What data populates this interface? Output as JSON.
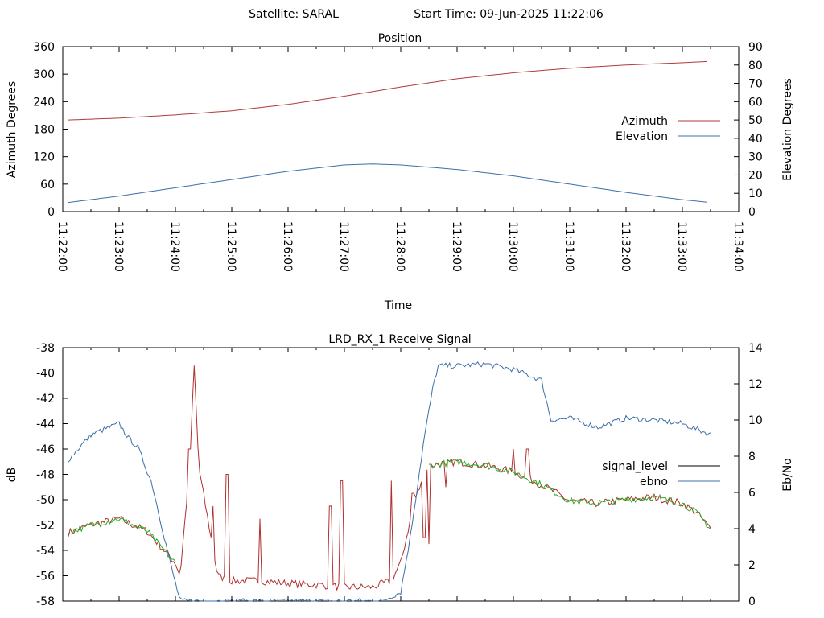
{
  "header": {
    "satellite_label": "Satellite: SARAL",
    "start_time_label": "Start Time: 09-Jun-2025 11:22:06"
  },
  "colors": {
    "azimuth": "#b03a3a",
    "elevation": "#3b6fa8",
    "signal_level": "#000000",
    "signal_level_drawn": "#b03030",
    "ebno": "#3b6fa8",
    "ebno_drawn": "#20b020"
  },
  "chart_data": [
    {
      "type": "line",
      "title": "Position",
      "xlabel": "Time",
      "ylabel": "Azimuth Degrees",
      "y2label": "Elevation Degrees",
      "xlim": [
        "11:22:00",
        "11:34:00"
      ],
      "x_ticks": [
        "11:22:00",
        "11:23:00",
        "11:24:00",
        "11:25:00",
        "11:26:00",
        "11:27:00",
        "11:28:00",
        "11:29:00",
        "11:30:00",
        "11:31:00",
        "11:32:00",
        "11:33:00",
        "11:34:00"
      ],
      "ylim": [
        0,
        360
      ],
      "y_ticks": [
        "0",
        "60",
        "120",
        "180",
        "240",
        "300",
        "360"
      ],
      "y2lim": [
        0,
        90
      ],
      "y2_ticks": [
        "0",
        "10",
        "20",
        "30",
        "40",
        "50",
        "60",
        "70",
        "80",
        "90"
      ],
      "legend_position": "right",
      "grid": false,
      "series": [
        {
          "name": "Azimuth",
          "axis": "left",
          "x": [
            "11:22:06",
            "11:23:00",
            "11:24:00",
            "11:25:00",
            "11:26:00",
            "11:27:00",
            "11:28:00",
            "11:29:00",
            "11:30:00",
            "11:31:00",
            "11:32:00",
            "11:33:00",
            "11:33:30"
          ],
          "values": [
            200,
            204,
            211,
            220,
            234,
            252,
            272,
            290,
            303,
            313,
            320,
            325,
            328
          ]
        },
        {
          "name": "Elevation",
          "axis": "right",
          "x": [
            "11:22:06",
            "11:23:00",
            "11:24:00",
            "11:25:00",
            "11:26:00",
            "11:27:00",
            "11:27:30",
            "11:28:00",
            "11:29:00",
            "11:30:00",
            "11:31:00",
            "11:32:00",
            "11:33:00",
            "11:33:30"
          ],
          "values": [
            5,
            8.5,
            13,
            17.5,
            22,
            25.5,
            26,
            25.5,
            23,
            19.5,
            15,
            10.5,
            6.5,
            5
          ]
        }
      ]
    },
    {
      "type": "line",
      "title": "LRD_RX_1 Receive Signal",
      "xlabel": "",
      "ylabel": "dB",
      "y2label": "Eb/No",
      "xlim": [
        "11:22:00",
        "11:34:00"
      ],
      "ylim": [
        -58,
        -38
      ],
      "y_ticks": [
        "-58",
        "-56",
        "-54",
        "-52",
        "-50",
        "-48",
        "-46",
        "-44",
        "-42",
        "-40",
        "-38"
      ],
      "y2lim": [
        0,
        14
      ],
      "y2_ticks": [
        "0",
        "2",
        "4",
        "6",
        "8",
        "10",
        "12",
        "14"
      ],
      "legend_position": "right",
      "grid": false,
      "series": [
        {
          "name": "signal_level",
          "axis": "left",
          "x": [
            "11:22:06",
            "11:22:30",
            "11:23:00",
            "11:23:30",
            "11:24:00",
            "11:24:05",
            "11:24:15",
            "11:24:20",
            "11:24:25",
            "11:24:45",
            "11:25:00",
            "11:25:30",
            "11:26:00",
            "11:26:30",
            "11:27:00",
            "11:27:30",
            "11:27:50",
            "11:28:00",
            "11:28:15",
            "11:28:30",
            "11:29:00",
            "11:29:30",
            "11:30:00",
            "11:30:30",
            "11:31:00",
            "11:31:30",
            "11:32:00",
            "11:32:30",
            "11:33:00",
            "11:33:15",
            "11:33:30"
          ],
          "values": [
            -52.6,
            -52.0,
            -51.5,
            -52.5,
            -55.0,
            -56.0,
            -47.5,
            -39.5,
            -47.5,
            -56.0,
            -56.4,
            -56.4,
            -56.6,
            -56.7,
            -56.9,
            -56.9,
            -56.4,
            -55.0,
            -50.0,
            -47.3,
            -47.0,
            -47.3,
            -47.8,
            -48.8,
            -50.1,
            -50.3,
            -50.0,
            -49.8,
            -50.3,
            -51.0,
            -52.3
          ]
        },
        {
          "name": "ebno",
          "axis": "right",
          "x": [
            "11:22:06",
            "11:22:30",
            "11:23:00",
            "11:23:10",
            "11:23:20",
            "11:23:35",
            "11:23:55",
            "11:24:05",
            "11:24:25",
            "11:26:00",
            "11:27:40",
            "11:28:00",
            "11:28:10",
            "11:28:25",
            "11:28:35",
            "11:28:40",
            "11:29:00",
            "11:29:30",
            "11:30:00",
            "11:30:30",
            "11:30:40",
            "11:31:00",
            "11:31:30",
            "11:32:00",
            "11:32:30",
            "11:33:00",
            "11:33:30"
          ],
          "values": [
            7.8,
            9.2,
            9.8,
            9.0,
            8.5,
            6.5,
            2.0,
            0.0,
            0.0,
            0.0,
            0.0,
            0.5,
            3.5,
            9.0,
            12.0,
            13.0,
            13.0,
            13.1,
            12.8,
            12.2,
            10.0,
            10.1,
            9.6,
            10.1,
            10.0,
            9.8,
            9.2
          ]
        }
      ]
    }
  ]
}
